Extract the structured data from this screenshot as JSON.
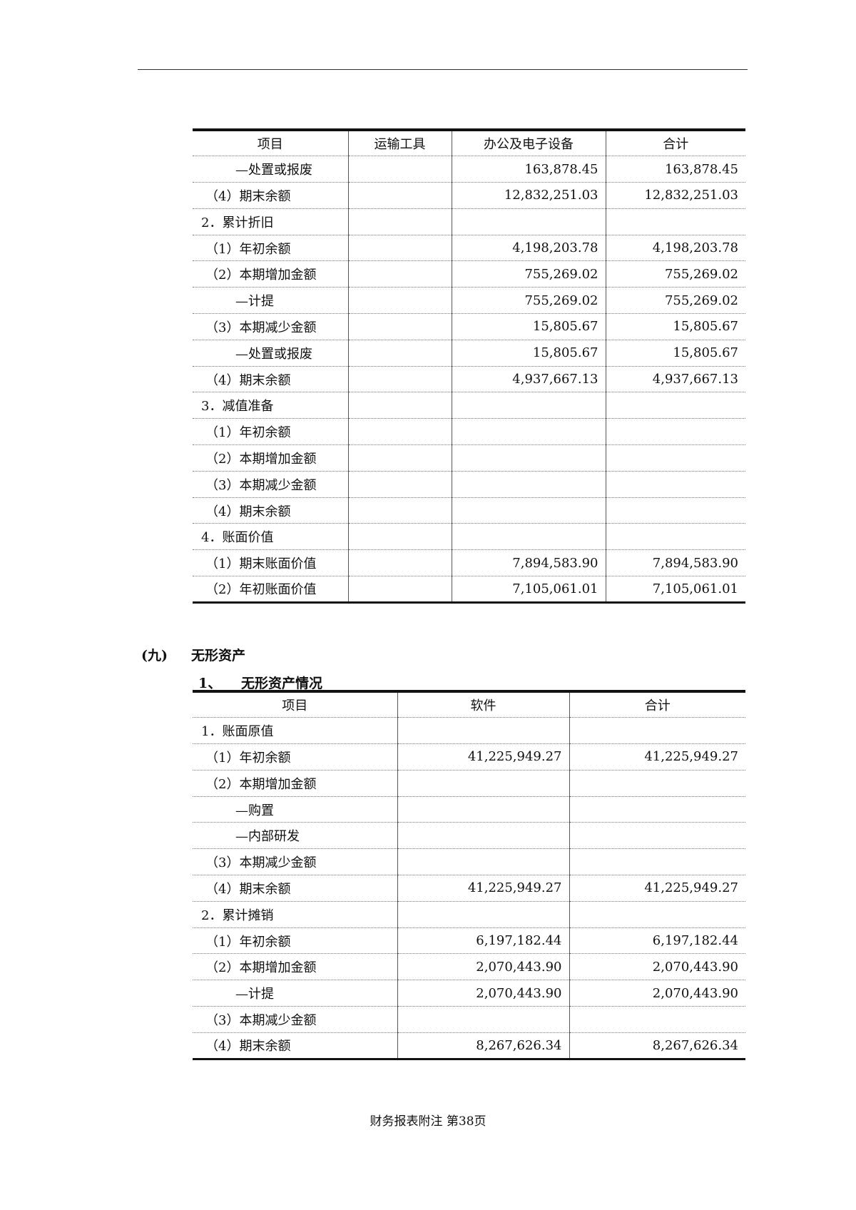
{
  "table1": {
    "headers": [
      "项目",
      "运输工具",
      "办公及电子设备",
      "合计"
    ],
    "rows": [
      {
        "label": "—处置或报废",
        "indent": 2,
        "transport": "",
        "office": "163,878.45",
        "total": "163,878.45"
      },
      {
        "label": "（4）期末余额",
        "indent": 1,
        "transport": "",
        "office": "12,832,251.03",
        "total": "12,832,251.03"
      },
      {
        "label": "2．累计折旧",
        "indent": 0,
        "transport": "",
        "office": "",
        "total": ""
      },
      {
        "label": "（1）年初余额",
        "indent": 1,
        "transport": "",
        "office": "4,198,203.78",
        "total": "4,198,203.78"
      },
      {
        "label": "（2）本期增加金额",
        "indent": 1,
        "transport": "",
        "office": "755,269.02",
        "total": "755,269.02"
      },
      {
        "label": "—计提",
        "indent": 2,
        "transport": "",
        "office": "755,269.02",
        "total": "755,269.02"
      },
      {
        "label": "（3）本期减少金额",
        "indent": 1,
        "transport": "",
        "office": "15,805.67",
        "total": "15,805.67"
      },
      {
        "label": "—处置或报废",
        "indent": 2,
        "transport": "",
        "office": "15,805.67",
        "total": "15,805.67"
      },
      {
        "label": "（4）期末余额",
        "indent": 1,
        "transport": "",
        "office": "4,937,667.13",
        "total": "4,937,667.13"
      },
      {
        "label": "3．减值准备",
        "indent": 0,
        "transport": "",
        "office": "",
        "total": ""
      },
      {
        "label": "（1）年初余额",
        "indent": 1,
        "transport": "",
        "office": "",
        "total": ""
      },
      {
        "label": "（2）本期增加金额",
        "indent": 1,
        "transport": "",
        "office": "",
        "total": ""
      },
      {
        "label": "（3）本期减少金额",
        "indent": 1,
        "transport": "",
        "office": "",
        "total": ""
      },
      {
        "label": "（4）期末余额",
        "indent": 1,
        "transport": "",
        "office": "",
        "total": ""
      },
      {
        "label": "4．账面价值",
        "indent": 0,
        "transport": "",
        "office": "",
        "total": ""
      },
      {
        "label": "（1）期末账面价值",
        "indent": 1,
        "transport": "",
        "office": "7,894,583.90",
        "total": "7,894,583.90"
      },
      {
        "label": "（2）年初账面价值",
        "indent": 1,
        "transport": "",
        "office": "7,105,061.01",
        "total": "7,105,061.01"
      }
    ]
  },
  "section": {
    "number": "(九)",
    "title": "无形资产"
  },
  "subsection": {
    "number": "1、",
    "title": "无形资产情况"
  },
  "table2": {
    "headers": [
      "项目",
      "软件",
      "合计"
    ],
    "rows": [
      {
        "label": "1．账面原值",
        "indent": 0,
        "software": "",
        "total": ""
      },
      {
        "label": "（1）年初余额",
        "indent": 1,
        "software": "41,225,949.27",
        "total": "41,225,949.27"
      },
      {
        "label": "（2）本期增加金额",
        "indent": 1,
        "software": "",
        "total": ""
      },
      {
        "label": "—购置",
        "indent": 2,
        "software": "",
        "total": ""
      },
      {
        "label": "—内部研发",
        "indent": 2,
        "software": "",
        "total": ""
      },
      {
        "label": "（3）本期减少金额",
        "indent": 1,
        "software": "",
        "total": ""
      },
      {
        "label": "（4）期末余额",
        "indent": 1,
        "software": "41,225,949.27",
        "total": "41,225,949.27"
      },
      {
        "label": "2．累计摊销",
        "indent": 0,
        "software": "",
        "total": ""
      },
      {
        "label": "（1）年初余额",
        "indent": 1,
        "software": "6,197,182.44",
        "total": "6,197,182.44"
      },
      {
        "label": "（2）本期增加金额",
        "indent": 1,
        "software": "2,070,443.90",
        "total": "2,070,443.90"
      },
      {
        "label": "—计提",
        "indent": 2,
        "software": "2,070,443.90",
        "total": "2,070,443.90"
      },
      {
        "label": "（3）本期减少金额",
        "indent": 1,
        "software": "",
        "total": ""
      },
      {
        "label": "（4）期末余额",
        "indent": 1,
        "software": "8,267,626.34",
        "total": "8,267,626.34"
      }
    ]
  },
  "footer": "财务报表附注  第38页"
}
